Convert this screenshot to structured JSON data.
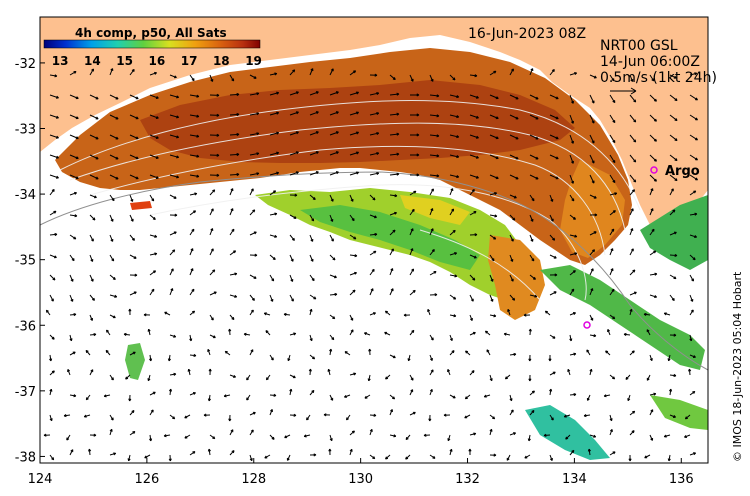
{
  "map": {
    "composite_label": "4h comp, p50, All Sats",
    "date": "16-Jun-2023 08Z",
    "current_product": "NRT00 GSL",
    "current_time": "14-Jun 06:00Z",
    "vector_scale": "0.5m/s (1kt 24h)",
    "argo_label": "Argo",
    "credit": "© IMOS 18-Jun-2023 05:04 Hobart",
    "colorbar": {
      "ticks": [
        "13",
        "14",
        "15",
        "16",
        "17",
        "18",
        "19"
      ],
      "min": 12.5,
      "max": 19.2
    },
    "x_ticks": [
      "124",
      "126",
      "128",
      "130",
      "132",
      "134",
      "136"
    ],
    "y_ticks": [
      "-32",
      "-33",
      "-34",
      "-35",
      "-36",
      "-37",
      "-38"
    ],
    "lon_range": [
      124,
      136.5
    ],
    "lat_range": [
      -38.1,
      -31.3
    ],
    "colors": {
      "land": "#fdc08f",
      "ocean_background": "#ffffff",
      "argo_marker": "#e000e0"
    }
  }
}
